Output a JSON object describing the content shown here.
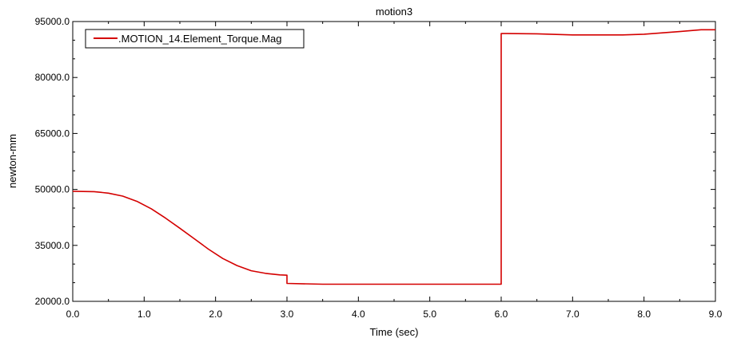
{
  "chart_data": {
    "type": "line",
    "title": "motion3",
    "xlabel": "Time (sec)",
    "ylabel": "newton-mm",
    "xlim": [
      0,
      9
    ],
    "ylim": [
      20000,
      95000
    ],
    "xticks": [
      "0.0",
      "1.0",
      "2.0",
      "3.0",
      "4.0",
      "5.0",
      "6.0",
      "7.0",
      "8.0",
      "9.0"
    ],
    "xtick_values": [
      0,
      1,
      2,
      3,
      4,
      5,
      6,
      7,
      8,
      9
    ],
    "yticks": [
      "20000.0",
      "35000.0",
      "50000.0",
      "65000.0",
      "80000.0",
      "95000.0"
    ],
    "ytick_values": [
      20000,
      35000,
      50000,
      65000,
      80000,
      95000
    ],
    "grid": false,
    "legend_position": "top-left",
    "series": [
      {
        "name": ".MOTION_14.Element_Torque.Mag",
        "color": "#d40000",
        "x": [
          0,
          0.3,
          0.5,
          0.7,
          0.9,
          1.1,
          1.3,
          1.5,
          1.7,
          1.9,
          2.1,
          2.3,
          2.5,
          2.7,
          2.9,
          3.0,
          3.0,
          3.5,
          4.0,
          5.0,
          6.0,
          6.0,
          6.5,
          7.0,
          7.5,
          7.7,
          8.0,
          8.5,
          8.8,
          9.0
        ],
        "y": [
          49500,
          49400,
          49000,
          48200,
          46800,
          44800,
          42300,
          39600,
          36800,
          34000,
          31500,
          29600,
          28200,
          27500,
          27100,
          27000,
          24800,
          24600,
          24600,
          24600,
          24600,
          91800,
          91700,
          91400,
          91400,
          91400,
          91600,
          92300,
          92800,
          92800
        ]
      }
    ]
  }
}
